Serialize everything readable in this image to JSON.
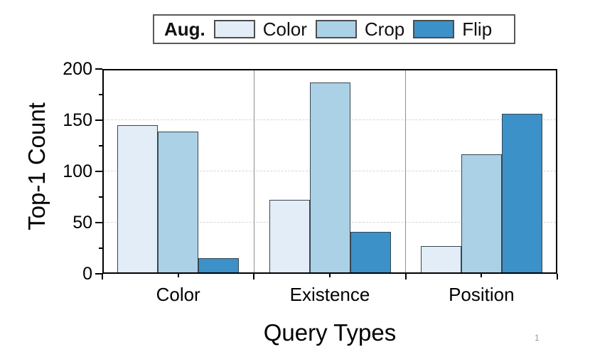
{
  "page": {
    "number": "1"
  },
  "chart_data": {
    "type": "bar",
    "title": "",
    "legend_title": "Aug.",
    "legend_position": "top-center",
    "categories": [
      "Color",
      "Existence",
      "Position"
    ],
    "series": [
      {
        "name": "Color",
        "color": "#e2edf8",
        "values": [
          145,
          72,
          27
        ]
      },
      {
        "name": "Crop",
        "color": "#abd1e6",
        "values": [
          139,
          187,
          117
        ]
      },
      {
        "name": "Flip",
        "color": "#3b91c8",
        "values": [
          15,
          41,
          156
        ]
      }
    ],
    "xlabel": "Query Types",
    "ylabel": "Top-1 Count",
    "ylim": [
      0,
      200
    ],
    "ytick_step": 50,
    "ytick_minor_step": 25,
    "yticks": [
      0,
      50,
      100,
      150,
      200
    ],
    "grid": "horizontal-dashed",
    "group_separators": true
  },
  "colors": {
    "bar_border": "#37474f",
    "axis": "#000000",
    "gridline": "#d6d6d6",
    "separator": "#909090",
    "legend_border": "#595959",
    "page_number": "#9a9a9a"
  }
}
